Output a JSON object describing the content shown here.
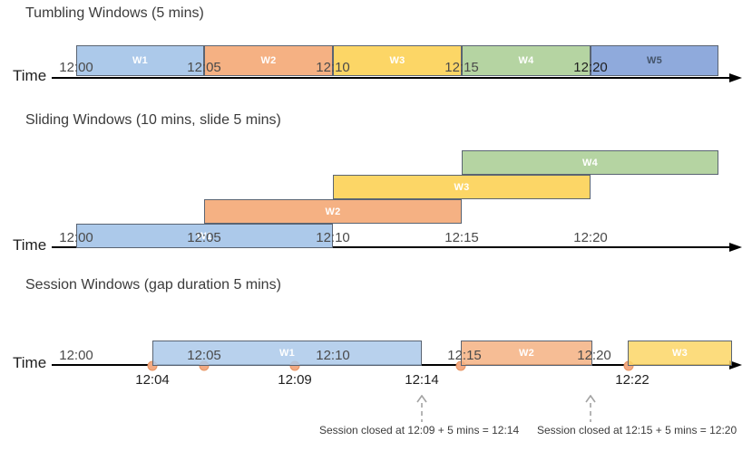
{
  "colors": {
    "blue": "#ACC9EA",
    "orange": "#F5B183",
    "yellow": "#FCD666",
    "green": "#B5D4A2",
    "periwinkle": "#8FAADC",
    "window_border": "#5A6472",
    "window_label": "#FFFFFF",
    "w5_label": "#44546A",
    "axis": "#000000",
    "tick_label": "#4A4A4A",
    "tick_label_emphasis": "#1F1F1F",
    "event_dot_fill": "#F3AA83",
    "event_dot_border": "#E89462",
    "annotation_text": "#3B3B3B",
    "annotation_arrow": "#A3A3A3"
  },
  "sections": [
    {
      "title": "Tumbling Windows (5 mins)",
      "time_axis_label": "Time",
      "ticks": [
        "12:00",
        "12:05",
        "12:10",
        "12:15",
        "12:20"
      ],
      "windows": [
        {
          "label": "W1",
          "color": "blue",
          "start": "12:00",
          "end": "12:05"
        },
        {
          "label": "W2",
          "color": "orange",
          "start": "12:05",
          "end": "12:10"
        },
        {
          "label": "W3",
          "color": "yellow",
          "start": "12:10",
          "end": "12:15"
        },
        {
          "label": "W4",
          "color": "green",
          "start": "12:15",
          "end": "12:20"
        },
        {
          "label": "W5",
          "color": "periwinkle",
          "start": "12:20",
          "end": "12:25",
          "label_color": "#44546A"
        }
      ]
    },
    {
      "title": "Sliding Windows (10 mins, slide 5 mins)",
      "time_axis_label": "Time",
      "ticks": [
        "12:00",
        "12:05",
        "12:10",
        "12:15",
        "12:20"
      ],
      "windows": [
        {
          "label": "W1",
          "color": "blue",
          "start": "12:00",
          "end": "12:10"
        },
        {
          "label": "W2",
          "color": "orange",
          "start": "12:05",
          "end": "12:15"
        },
        {
          "label": "W3",
          "color": "yellow",
          "start": "12:10",
          "end": "12:20"
        },
        {
          "label": "W4",
          "color": "green",
          "start": "12:15",
          "end": "12:25"
        }
      ]
    },
    {
      "title": "Session Windows (gap duration 5 mins)",
      "time_axis_label": "Time",
      "ticks": [
        "12:00",
        "12:05",
        "12:10",
        "12:15",
        "12:20"
      ],
      "windows": [
        {
          "label": "W1",
          "color": "blue",
          "start": "12:04",
          "end": "12:14"
        },
        {
          "label": "W2",
          "color": "orange",
          "start": "12:15",
          "end": "12:20"
        },
        {
          "label": "W3",
          "color": "yellow",
          "start": "12:22",
          "end": "12:26"
        }
      ],
      "events": [
        "12:04",
        "12:05",
        "12:09",
        "12:15",
        "12:22"
      ],
      "event_labels": [
        "12:04",
        "12:09",
        "12:14",
        "12:22"
      ],
      "annotations": [
        {
          "text": "Session closed at 12:09 + 5 mins = 12:14",
          "points_at": "12:14"
        },
        {
          "text": "Session closed at 12:15 + 5 mins = 12:20",
          "points_at": "12:20"
        }
      ]
    }
  ]
}
